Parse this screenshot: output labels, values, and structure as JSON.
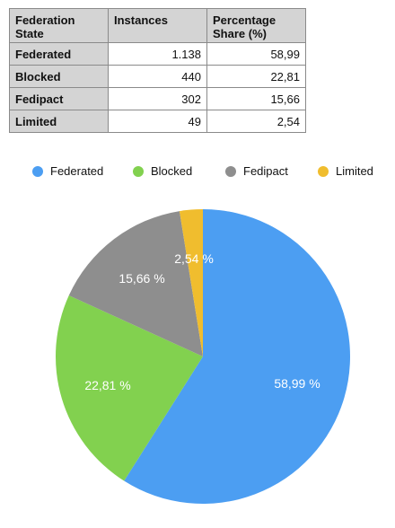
{
  "table": {
    "headers": [
      "Federation State",
      "Instances",
      "Percentage Share (%)"
    ],
    "rows": [
      {
        "state": "Federated",
        "instances": "1.138",
        "share": "58,99"
      },
      {
        "state": "Blocked",
        "instances": "440",
        "share": "22,81"
      },
      {
        "state": "Fedipact",
        "instances": "302",
        "share": "15,66"
      },
      {
        "state": "Limited",
        "instances": "49",
        "share": "2,54"
      }
    ]
  },
  "chart_data": {
    "type": "pie",
    "categories": [
      "Federated",
      "Blocked",
      "Fedipact",
      "Limited"
    ],
    "values": [
      58.99,
      22.81,
      15.66,
      2.54
    ],
    "labels": [
      "58,99 %",
      "22,81 %",
      "15,66 %",
      "2,54 %"
    ],
    "colors": [
      "#4c9ef2",
      "#82d14f",
      "#8e8e8e",
      "#f0bd2e"
    ],
    "legend_position": "top"
  }
}
